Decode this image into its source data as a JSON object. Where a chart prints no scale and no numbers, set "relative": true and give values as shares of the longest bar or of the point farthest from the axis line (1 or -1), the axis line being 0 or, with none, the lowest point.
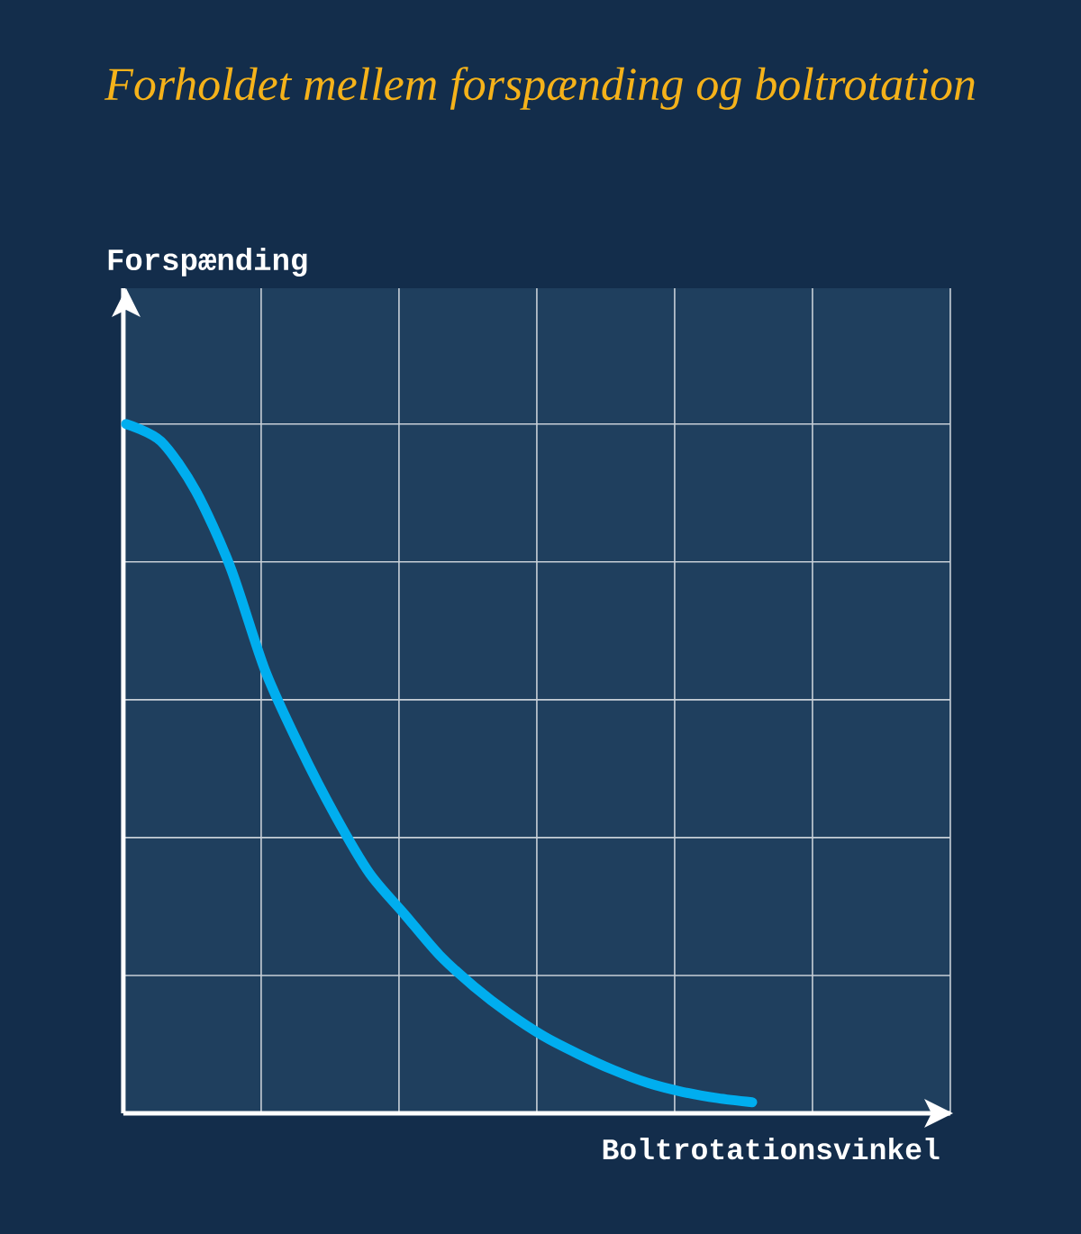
{
  "chart_data": {
    "type": "line",
    "title": "Forholdet mellem forspænding og boltrotation",
    "xlabel": "Boltrotationsvinkel",
    "ylabel": "Forspænding",
    "relative": true,
    "grid": true,
    "color": "#00aeef",
    "categories": [
      null,
      null,
      null,
      null,
      null,
      null,
      null,
      null,
      null,
      null,
      null,
      null,
      null,
      null,
      null,
      null,
      null,
      null,
      null
    ],
    "values": [
      1.0,
      0.975,
      0.903,
      0.792,
      0.642,
      0.531,
      0.433,
      0.348,
      0.289,
      0.23,
      0.184,
      0.145,
      0.112,
      0.086,
      0.063,
      0.044,
      0.031,
      0.022,
      0.016
    ]
  }
}
